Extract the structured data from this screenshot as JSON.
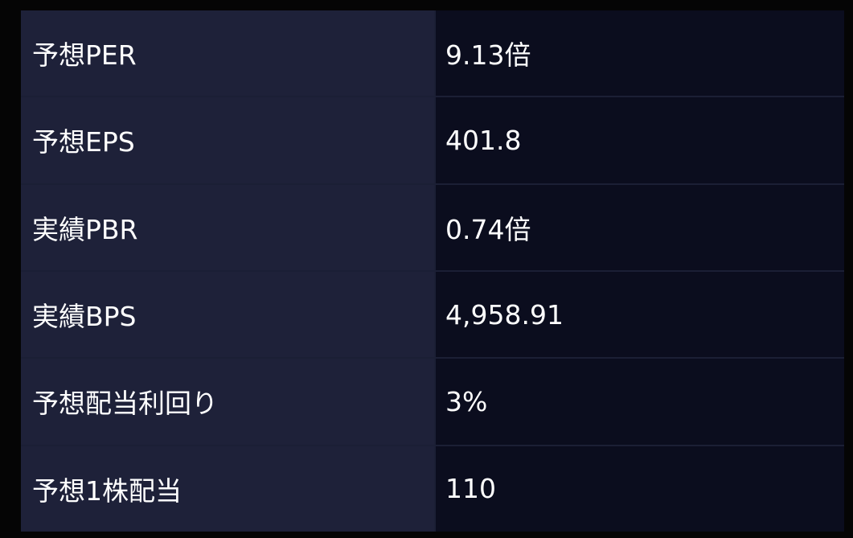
{
  "rows": [
    {
      "label": "予想PER",
      "value": "9.13倍"
    },
    {
      "label": "予想EPS",
      "value": "401.8"
    },
    {
      "label": "実績PBR",
      "value": "0.74倍"
    },
    {
      "label": "実績BPS",
      "value": "4,958.91"
    },
    {
      "label": "予想配当利回り",
      "value": "3%"
    },
    {
      "label": "予想1株配当",
      "value": "110"
    }
  ]
}
